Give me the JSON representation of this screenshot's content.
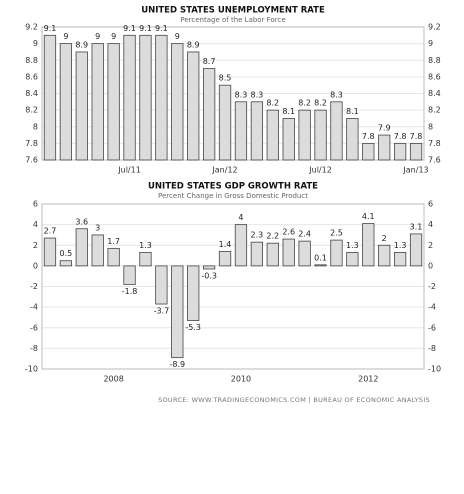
{
  "chart_data": [
    {
      "type": "bar",
      "title": "UNITED STATES UNEMPLOYMENT RATE",
      "subtitle": "Percentage of the Labor Force",
      "categories": [
        null,
        null,
        null,
        null,
        null,
        "Jul/11",
        null,
        null,
        null,
        null,
        null,
        "Jan/12",
        null,
        null,
        null,
        null,
        null,
        "Jul/12",
        null,
        null,
        null,
        null,
        null,
        "Jan/13"
      ],
      "values": [
        9.1,
        9,
        8.9,
        9,
        9,
        9.1,
        9.1,
        9.1,
        9,
        8.9,
        8.7,
        8.5,
        8.3,
        8.3,
        8.2,
        8.1,
        8.2,
        8.2,
        8.3,
        8.1,
        7.8,
        7.9,
        7.8,
        7.8
      ],
      "color": "#dcdcdc",
      "ylim": [
        7.6,
        9.2
      ],
      "yticks": [
        7.6,
        7.8,
        8,
        8.2,
        8.4,
        8.6,
        8.8,
        9,
        9.2
      ],
      "grid": true
    },
    {
      "type": "bar",
      "title": "UNITED STATES GDP GROWTH RATE",
      "subtitle": "Percent Change in Gross Domestic Product",
      "categories": [
        null,
        null,
        null,
        null,
        "2008",
        null,
        null,
        null,
        null,
        null,
        null,
        null,
        "2010",
        null,
        null,
        null,
        null,
        null,
        null,
        null,
        "2012",
        null,
        null,
        null
      ],
      "values": [
        2.7,
        0.5,
        3.6,
        3,
        1.7,
        -1.8,
        1.3,
        -3.7,
        -8.9,
        -5.3,
        -0.3,
        1.4,
        4,
        2.3,
        2.2,
        2.6,
        2.4,
        0.1,
        2.5,
        1.3,
        4.1,
        2,
        1.3,
        3.1
      ],
      "color": "#dcdcdc",
      "ylim": [
        -10,
        6
      ],
      "yticks": [
        -10,
        -8,
        -6,
        -4,
        -2,
        0,
        2,
        4,
        6
      ],
      "grid": true,
      "source": "SOURCE: WWW.TRADINGECONOMICS.COM  |  BUREAU OF ECONOMIC ANALYSIS"
    }
  ]
}
